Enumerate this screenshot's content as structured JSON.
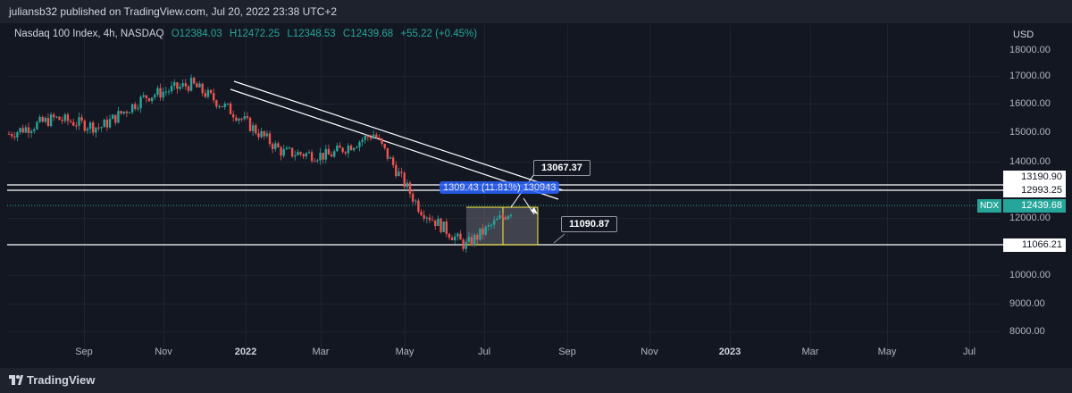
{
  "header": {
    "published": "juliansb32 published on TradingView.com, Jul 20, 2022 23:38 UTC+2"
  },
  "symbol": {
    "name": "Nasdaq 100 Index, 4h, NASDAQ",
    "open": "O12384.03",
    "high": "H12472.25",
    "low": "L12348.53",
    "close": "C12439.68",
    "change": "+55.22 (+0.45%)"
  },
  "axis": {
    "currency": "USD",
    "y_ticks": [
      "18000.00",
      "17000.00",
      "16000.00",
      "15000.00",
      "14000.00",
      "12000.00",
      "10000.00",
      "9000.00",
      "8000.00"
    ],
    "x_ticks": [
      "Sep",
      "Nov",
      "2022",
      "Mar",
      "May",
      "Jul",
      "Sep",
      "Nov",
      "2023",
      "Mar",
      "May",
      "Jul"
    ]
  },
  "price_labels": {
    "level_1": "13190.90",
    "level_2": "12993.25",
    "last": "12439.68",
    "level_low": "11066.21",
    "ticker_tag": "NDX"
  },
  "callouts": {
    "upper": "13067.37",
    "lower": "11090.87",
    "measure": "1309.43 (11.81%) 130943"
  },
  "footer": {
    "brand": "TradingView"
  },
  "colors": {
    "up": "#26a69a",
    "down": "#ef5350",
    "bg": "#131722",
    "measure": "#2962ff",
    "range_box": "#ffeb3b"
  },
  "chart_data": {
    "type": "candlestick",
    "title": "Nasdaq 100 Index, 4h, NASDAQ",
    "ylabel": "USD",
    "ylim": [
      7600,
      18400
    ],
    "x": [
      "Aug 2021",
      "Sep 2021",
      "Oct 2021",
      "Nov 2021",
      "Dec 2021",
      "Jan 2022",
      "Feb 2022",
      "Mar 2022",
      "Apr 2022",
      "May 2022",
      "Jun 2022",
      "Jul 2022"
    ],
    "series": [
      {
        "values": [
          14900,
          15400,
          15100,
          16100,
          16500,
          15500,
          14300,
          14200,
          14900,
          12500,
          11300,
          12439.68
        ]
      }
    ],
    "horizontal_levels": [
      13190.9,
      12993.25,
      11066.21
    ],
    "last_price": 12439.68
  }
}
